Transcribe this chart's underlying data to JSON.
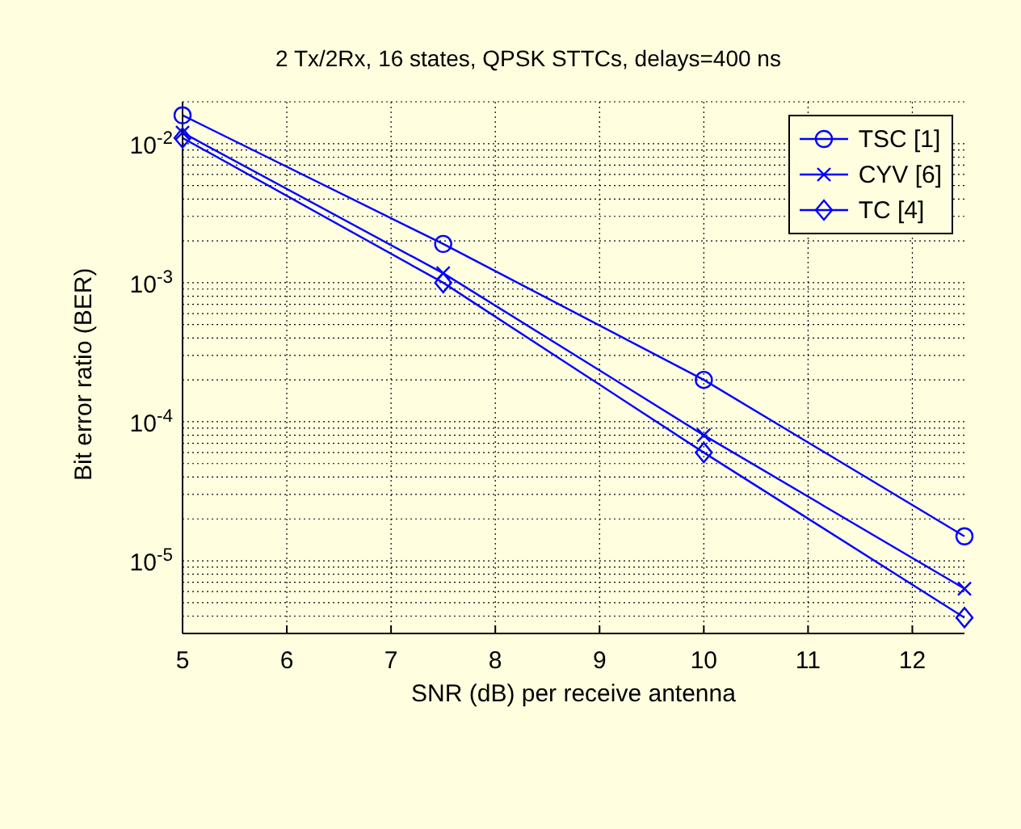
{
  "chart_data": {
    "type": "line",
    "title": "2 Tx/2Rx, 16 states, QPSK STTCs, delays=400 ns",
    "xlabel": "SNR (dB) per receive antenna",
    "ylabel": "Bit error ratio (BER)",
    "x": [
      5,
      7.5,
      10,
      12.5
    ],
    "series": [
      {
        "name": "TSC [1]",
        "color": "#0000ff",
        "marker": "circle",
        "values": [
          0.016,
          0.0019,
          0.0002,
          1.5e-05
        ]
      },
      {
        "name": "CYV [6]",
        "color": "#0000ff",
        "marker": "cross",
        "values": [
          0.012,
          0.00117,
          8e-05,
          6.3e-06
        ]
      },
      {
        "name": "TC [4]",
        "color": "#0000ff",
        "marker": "diamond",
        "values": [
          0.011,
          0.001,
          6e-05,
          3.9e-06
        ]
      }
    ],
    "log": "y",
    "xlim": [
      5,
      12.5
    ],
    "xticks": [
      5,
      6,
      7,
      8,
      9,
      10,
      11,
      12
    ],
    "ylim": [
      3e-06,
      0.02
    ],
    "yticks": [
      {
        "value": 3e-06,
        "label": null
      },
      {
        "value": 4e-06,
        "label": null
      },
      {
        "value": 5e-06,
        "label": null
      },
      {
        "value": 6e-06,
        "label": null
      },
      {
        "value": 7e-06,
        "label": null
      },
      {
        "value": 8e-06,
        "label": null
      },
      {
        "value": 9e-06,
        "label": null
      },
      {
        "value": 1e-05,
        "label": "10$^{-5}$"
      },
      {
        "value": 2e-05,
        "label": null
      },
      {
        "value": 3e-05,
        "label": null
      },
      {
        "value": 4e-05,
        "label": null
      },
      {
        "value": 5e-05,
        "label": null
      },
      {
        "value": 6e-05,
        "label": null
      },
      {
        "value": 7e-05,
        "label": null
      },
      {
        "value": 8e-05,
        "label": null
      },
      {
        "value": 9e-05,
        "label": null
      },
      {
        "value": 0.0001,
        "label": "10$^{-4}$"
      },
      {
        "value": 0.0002,
        "label": null
      },
      {
        "value": 0.0003,
        "label": null
      },
      {
        "value": 0.0004,
        "label": null
      },
      {
        "value": 0.0005,
        "label": null
      },
      {
        "value": 0.0006,
        "label": null
      },
      {
        "value": 0.0007,
        "label": null
      },
      {
        "value": 0.0008,
        "label": null
      },
      {
        "value": 0.0009,
        "label": null
      },
      {
        "value": 0.001,
        "label": "10$^{-3}$"
      },
      {
        "value": 0.002,
        "label": null
      },
      {
        "value": 0.003,
        "label": null
      },
      {
        "value": 0.004,
        "label": null
      },
      {
        "value": 0.005,
        "label": null
      },
      {
        "value": 0.006,
        "label": null
      },
      {
        "value": 0.007,
        "label": null
      },
      {
        "value": 0.008,
        "label": null
      },
      {
        "value": 0.009,
        "label": null
      },
      {
        "value": 0.01,
        "label": "10$^{-2}$"
      },
      {
        "value": 0.02,
        "label": null
      }
    ],
    "grid": true,
    "legend": "top right",
    "line_style": "solid"
  }
}
